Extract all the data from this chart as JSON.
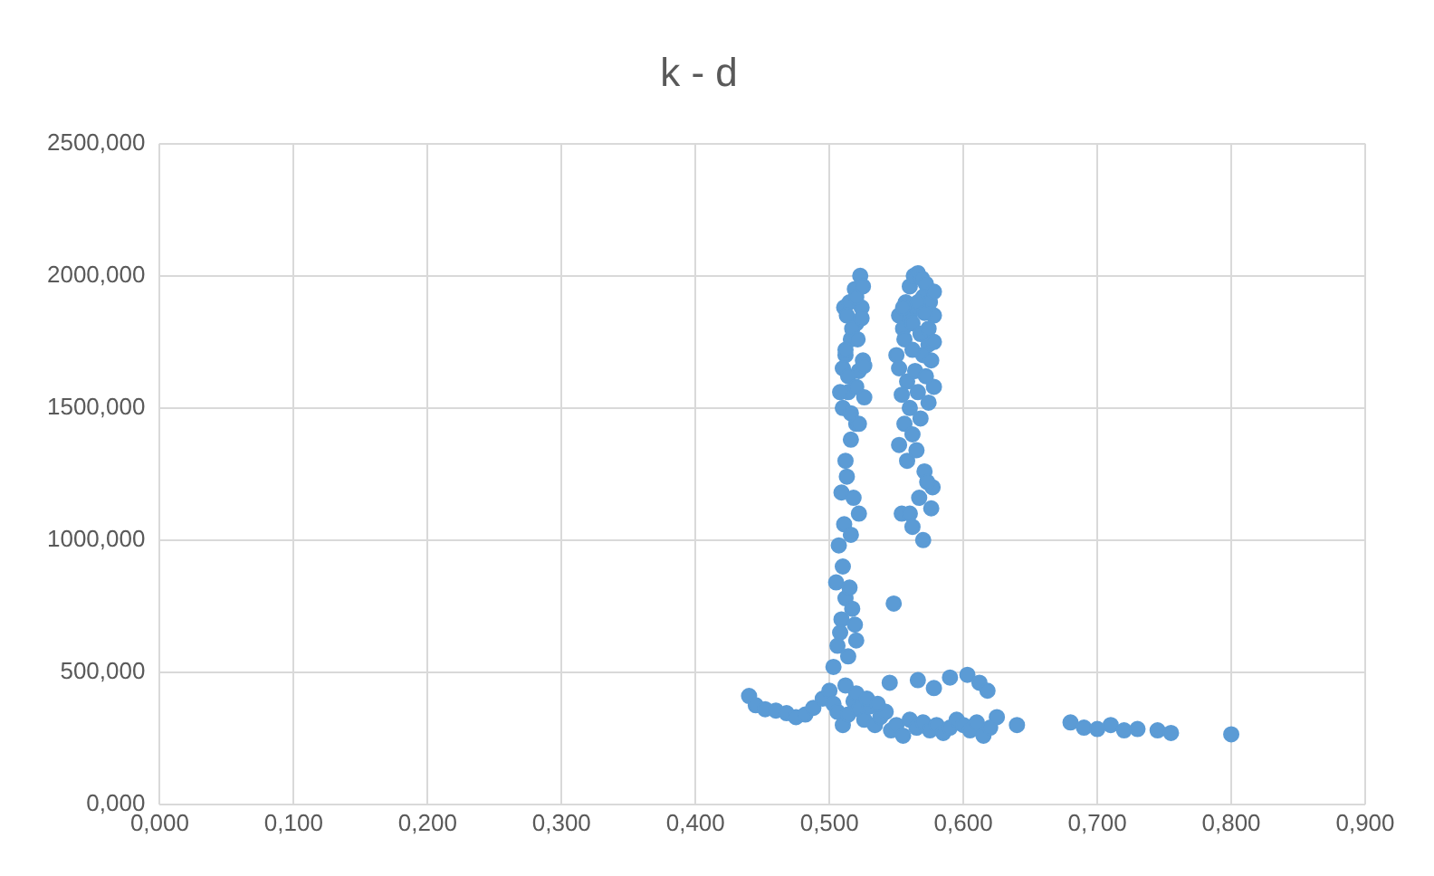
{
  "chart_data": {
    "type": "scatter",
    "title": "k - d",
    "marker": "circle",
    "grid": true,
    "legend": false,
    "xlim": [
      0,
      0.9
    ],
    "ylim": [
      0,
      2500
    ],
    "xticks": [
      {
        "value": 0,
        "label": "0,000"
      },
      {
        "value": 0.1,
        "label": "0,100"
      },
      {
        "value": 0.2,
        "label": "0,200"
      },
      {
        "value": 0.3,
        "label": "0,300"
      },
      {
        "value": 0.4,
        "label": "0,400"
      },
      {
        "value": 0.5,
        "label": "0,500"
      },
      {
        "value": 0.6,
        "label": "0,600"
      },
      {
        "value": 0.7,
        "label": "0,700"
      },
      {
        "value": 0.8,
        "label": "0,800"
      },
      {
        "value": 0.9,
        "label": "0,900"
      }
    ],
    "yticks": [
      {
        "value": 0,
        "label": "0,000"
      },
      {
        "value": 500,
        "label": "500,000"
      },
      {
        "value": 1000,
        "label": "1000,000"
      },
      {
        "value": 1500,
        "label": "1500,000"
      },
      {
        "value": 2000,
        "label": "2000,000"
      },
      {
        "value": 2500,
        "label": "2500,000"
      }
    ],
    "series": [
      {
        "color": "#5b9bd5",
        "x": [
          0.44,
          0.445,
          0.452,
          0.46,
          0.468,
          0.475,
          0.482,
          0.488,
          0.495,
          0.5,
          0.503,
          0.506,
          0.51,
          0.514,
          0.518,
          0.522,
          0.526,
          0.53,
          0.534,
          0.538,
          0.542,
          0.546,
          0.55,
          0.555,
          0.56,
          0.565,
          0.57,
          0.575,
          0.58,
          0.585,
          0.59,
          0.595,
          0.6,
          0.605,
          0.61,
          0.615,
          0.62,
          0.625,
          0.512,
          0.52,
          0.528,
          0.536,
          0.545,
          0.566,
          0.578,
          0.59,
          0.603,
          0.612,
          0.618,
          0.64,
          0.68,
          0.69,
          0.7,
          0.71,
          0.72,
          0.73,
          0.745,
          0.755,
          0.8,
          0.503,
          0.506,
          0.509,
          0.512,
          0.508,
          0.514,
          0.517,
          0.52,
          0.505,
          0.51,
          0.515,
          0.519,
          0.507,
          0.511,
          0.516,
          0.522,
          0.509,
          0.513,
          0.518,
          0.512,
          0.516,
          0.52,
          0.51,
          0.514,
          0.522,
          0.512,
          0.508,
          0.516,
          0.52,
          0.524,
          0.511,
          0.515,
          0.519,
          0.523,
          0.513,
          0.517,
          0.521,
          0.525,
          0.51,
          0.514,
          0.52,
          0.526,
          0.516,
          0.522,
          0.526,
          0.512,
          0.524,
          0.52,
          0.525,
          0.548,
          0.554,
          0.552,
          0.557,
          0.56,
          0.563,
          0.566,
          0.569,
          0.572,
          0.555,
          0.56,
          0.565,
          0.57,
          0.575,
          0.578,
          0.55,
          0.556,
          0.562,
          0.568,
          0.574,
          0.552,
          0.558,
          0.564,
          0.57,
          0.576,
          0.554,
          0.56,
          0.566,
          0.572,
          0.578,
          0.556,
          0.562,
          0.568,
          0.574,
          0.552,
          0.558,
          0.565,
          0.571,
          0.577,
          0.56,
          0.567,
          0.573,
          0.562,
          0.57,
          0.576,
          0.574,
          0.578,
          0.566,
          0.571,
          0.578,
          0.562,
          0.555
        ],
        "values": [
          410,
          375,
          360,
          355,
          345,
          330,
          340,
          365,
          400,
          430,
          380,
          350,
          300,
          340,
          390,
          360,
          320,
          370,
          300,
          330,
          350,
          280,
          300,
          260,
          320,
          290,
          310,
          280,
          300,
          270,
          290,
          320,
          300,
          280,
          310,
          260,
          290,
          330,
          450,
          420,
          400,
          380,
          460,
          470,
          440,
          480,
          490,
          460,
          430,
          300,
          310,
          290,
          285,
          300,
          280,
          285,
          280,
          270,
          265,
          520,
          600,
          700,
          780,
          650,
          560,
          740,
          620,
          840,
          900,
          820,
          680,
          980,
          1060,
          1020,
          1100,
          1180,
          1240,
          1160,
          1300,
          1380,
          1440,
          1500,
          1560,
          1640,
          1700,
          1560,
          1760,
          1820,
          1880,
          1880,
          1900,
          1950,
          2000,
          1850,
          1800,
          1760,
          1680,
          1650,
          1620,
          1580,
          1540,
          1480,
          1440,
          1660,
          1720,
          1840,
          1920,
          1960,
          760,
          1100,
          1850,
          1900,
          1960,
          2000,
          2010,
          1990,
          1970,
          1800,
          1840,
          1880,
          1920,
          1900,
          1850,
          1700,
          1760,
          1820,
          1780,
          1740,
          1650,
          1600,
          1640,
          1700,
          1680,
          1550,
          1500,
          1560,
          1620,
          1580,
          1440,
          1400,
          1460,
          1520,
          1360,
          1300,
          1340,
          1260,
          1200,
          1100,
          1160,
          1220,
          1050,
          1000,
          1120,
          1800,
          1750,
          1900,
          1860,
          1940,
          1720,
          1880
        ]
      }
    ]
  }
}
